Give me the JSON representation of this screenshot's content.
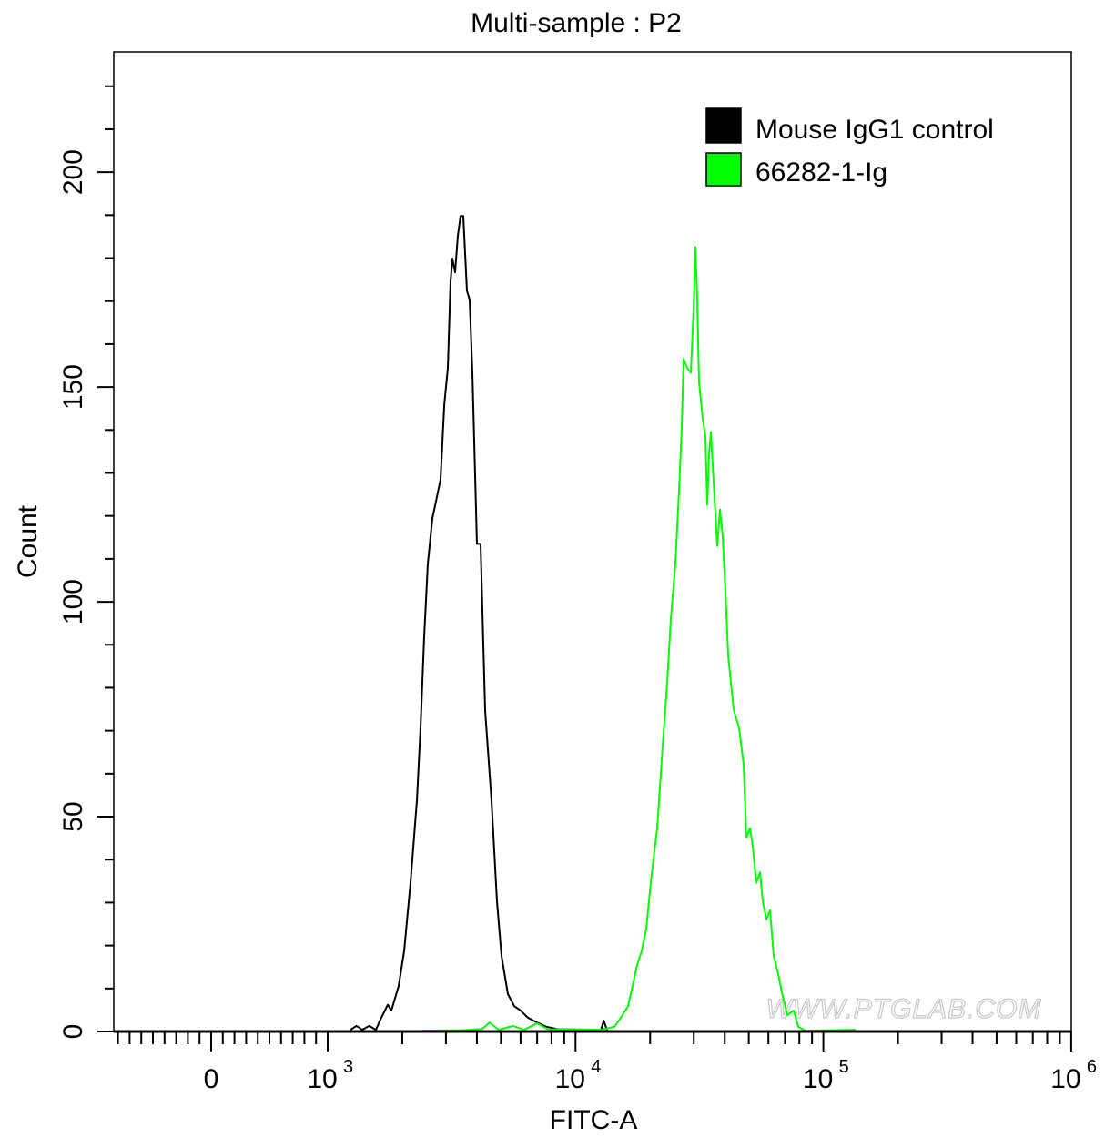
{
  "chart_data": {
    "type": "line",
    "title": "Multi-sample : P2",
    "xlabel": "FITC-A",
    "ylabel": "Count",
    "x_scale": "biexponential",
    "xlim": [
      -836,
      1000000
    ],
    "ylim": [
      0,
      228
    ],
    "x_ticks": [
      {
        "value": 0,
        "label": "0",
        "sup": ""
      },
      {
        "value": 1000,
        "label": "10",
        "sup": "3"
      },
      {
        "value": 10000,
        "label": "10",
        "sup": "4"
      },
      {
        "value": 100000,
        "label": "10",
        "sup": "5"
      },
      {
        "value": 1000000,
        "label": "10",
        "sup": "6"
      }
    ],
    "y_ticks": [
      0,
      50,
      100,
      150,
      200
    ],
    "grid": false,
    "legend_position": "top-right",
    "watermark": "WWW.PTGLAB.COM",
    "series": [
      {
        "name": "Mouse IgG1 control",
        "color": "#000000",
        "points": [
          [
            1235,
            0.4
          ],
          [
            1307,
            1.3
          ],
          [
            1379,
            0.4
          ],
          [
            1470,
            1.3
          ],
          [
            1565,
            0.4
          ],
          [
            1633,
            2.8
          ],
          [
            1747,
            6.2
          ],
          [
            1807,
            4.9
          ],
          [
            1934,
            10.6
          ],
          [
            2035,
            18.7
          ],
          [
            2159,
            34.6
          ],
          [
            2291,
            53.7
          ],
          [
            2370,
            70.6
          ],
          [
            2451,
            91.9
          ],
          [
            2535,
            108.8
          ],
          [
            2645,
            119.4
          ],
          [
            2713,
            122.4
          ],
          [
            2854,
            128.5
          ],
          [
            2953,
            145.9
          ],
          [
            3054,
            154.4
          ],
          [
            3132,
            174.5
          ],
          [
            3186,
            179.9
          ],
          [
            3267,
            176.7
          ],
          [
            3351,
            185.2
          ],
          [
            3438,
            189.8
          ],
          [
            3526,
            189.8
          ],
          [
            3647,
            172.4
          ],
          [
            3741,
            170.3
          ],
          [
            3836,
            153.3
          ],
          [
            4003,
            113.5
          ],
          [
            4140,
            113.5
          ],
          [
            4318,
            74.7
          ],
          [
            4581,
            53.7
          ],
          [
            4822,
            30.3
          ],
          [
            5029,
            17.6
          ],
          [
            5335,
            8.7
          ],
          [
            5659,
            5.9
          ],
          [
            6003,
            4.9
          ],
          [
            6426,
            3.2
          ],
          [
            6993,
            2.1
          ],
          [
            7611,
            1.1
          ],
          [
            8425,
            0.6
          ],
          [
            9500,
            0.3
          ],
          [
            12640,
            0.2
          ],
          [
            13000,
            2.5
          ],
          [
            13400,
            0.3
          ]
        ]
      },
      {
        "name": "66282-1-Ig",
        "color": "#00ff00",
        "points": [
          [
            2400,
            0.2
          ],
          [
            3500,
            0.3
          ],
          [
            4200,
            0.6
          ],
          [
            4500,
            2.1
          ],
          [
            4900,
            0.4
          ],
          [
            5600,
            1.3
          ],
          [
            6200,
            0.4
          ],
          [
            7000,
            1.9
          ],
          [
            7800,
            0.4
          ],
          [
            8600,
            0.6
          ],
          [
            12640,
            0.4
          ],
          [
            14350,
            1.1
          ],
          [
            15220,
            3.2
          ],
          [
            16290,
            5.9
          ],
          [
            17730,
            15.5
          ],
          [
            18490,
            18.7
          ],
          [
            19290,
            24.0
          ],
          [
            20290,
            36.7
          ],
          [
            21350,
            47.3
          ],
          [
            22460,
            66.4
          ],
          [
            23430,
            81.2
          ],
          [
            24240,
            96.1
          ],
          [
            25290,
            108.8
          ],
          [
            26160,
            125.8
          ],
          [
            26830,
            140.6
          ],
          [
            27290,
            156.5
          ],
          [
            28220,
            154.4
          ],
          [
            29190,
            153.3
          ],
          [
            29950,
            168.2
          ],
          [
            30450,
            182.6
          ],
          [
            30970,
            170.3
          ],
          [
            31500,
            151.2
          ],
          [
            32580,
            142.7
          ],
          [
            33420,
            138.5
          ],
          [
            33990,
            122.6
          ],
          [
            34570,
            134.3
          ],
          [
            35170,
            139.6
          ],
          [
            36070,
            127.9
          ],
          [
            37320,
            113.0
          ],
          [
            38270,
            121.5
          ],
          [
            39260,
            115.2
          ],
          [
            40270,
            102.4
          ],
          [
            41300,
            87.6
          ],
          [
            43450,
            74.9
          ],
          [
            45700,
            70.6
          ],
          [
            47690,
            62.1
          ],
          [
            48920,
            45.2
          ],
          [
            50580,
            47.3
          ],
          [
            51880,
            43.1
          ],
          [
            53660,
            34.6
          ],
          [
            55510,
            37.1
          ],
          [
            56930,
            30.3
          ],
          [
            58890,
            26.1
          ],
          [
            60920,
            28.2
          ],
          [
            63030,
            17.6
          ],
          [
            65740,
            13.4
          ],
          [
            68010,
            9.1
          ],
          [
            71550,
            3.8
          ],
          [
            75920,
            4.9
          ],
          [
            79150,
            1.1
          ],
          [
            84720,
            0.2
          ],
          [
            110000,
            0.3
          ],
          [
            134900,
            0.4
          ]
        ]
      }
    ]
  }
}
